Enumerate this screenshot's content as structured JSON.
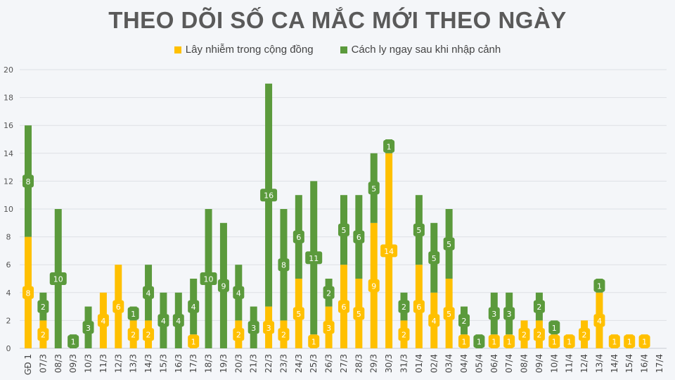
{
  "chart_data": {
    "type": "bar",
    "stacked": true,
    "title": "THEO DÕI SỐ CA MẮC MỚI THEO NGÀY",
    "xlabel": "",
    "ylabel": "",
    "ylim": [
      0,
      20
    ],
    "yticks": [
      0,
      2,
      4,
      6,
      8,
      10,
      12,
      14,
      16,
      18,
      20
    ],
    "grid": true,
    "legend_position": "top",
    "data_labels": true,
    "categories": [
      "GĐ 1",
      "07/3",
      "08/3",
      "09/3",
      "10/3",
      "11/3",
      "12/3",
      "13/3",
      "14/3",
      "15/3",
      "16/3",
      "17/3",
      "18/3",
      "19/3",
      "20/3",
      "21/3",
      "22/3",
      "23/3",
      "24/3",
      "25/3",
      "26/3",
      "27/3",
      "28/3",
      "29/3",
      "30/3",
      "31/3",
      "01/4",
      "02/4",
      "03/4",
      "04/4",
      "05/4",
      "06/4",
      "07/4",
      "08/4",
      "09/4",
      "10/4",
      "11/4",
      "12/4",
      "13/4",
      "14/4",
      "15/4",
      "16/4",
      "17/4"
    ],
    "series": [
      {
        "name": "Lây nhiễm trong cộng đồng",
        "color": "#ffc000",
        "values": [
          8,
          2,
          0,
          0,
          0,
          4,
          6,
          2,
          2,
          0,
          0,
          1,
          0,
          0,
          2,
          0,
          3,
          2,
          5,
          1,
          3,
          6,
          5,
          9,
          14,
          2,
          6,
          4,
          5,
          1,
          0,
          1,
          1,
          2,
          2,
          1,
          1,
          2,
          4,
          1,
          1,
          1,
          0
        ]
      },
      {
        "name": "Cách ly ngay sau khi nhập cảnh",
        "color": "#5b9a3c",
        "values": [
          8,
          2,
          10,
          1,
          3,
          0,
          0,
          1,
          4,
          4,
          4,
          4,
          10,
          9,
          4,
          3,
          16,
          8,
          6,
          11,
          2,
          5,
          6,
          5,
          1,
          2,
          5,
          5,
          5,
          2,
          1,
          3,
          3,
          0,
          2,
          1,
          0,
          0,
          1,
          0,
          0,
          0,
          0
        ]
      }
    ]
  }
}
